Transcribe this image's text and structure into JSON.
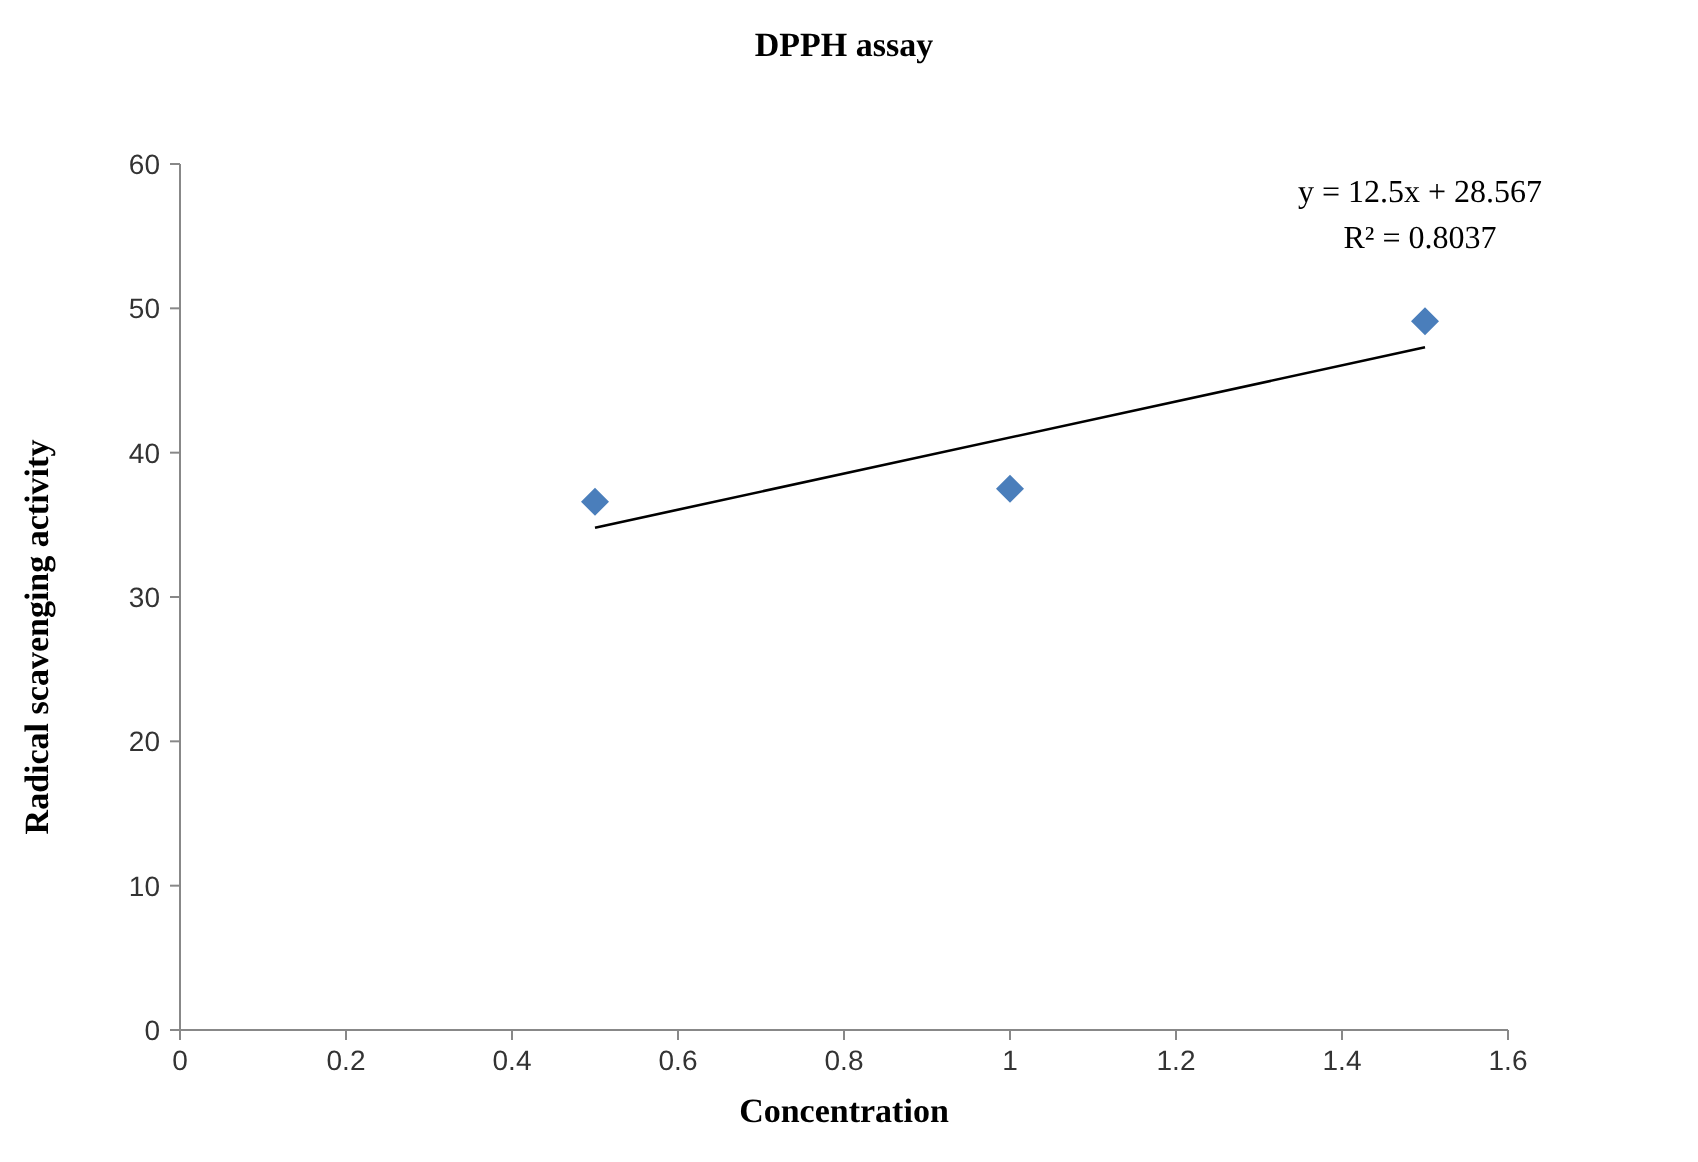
{
  "chart_data": {
    "type": "scatter",
    "title": "DPPH assay",
    "xlabel": "Concentration",
    "ylabel": "Radical scavenging activity",
    "x": [
      0.5,
      1,
      1.5
    ],
    "series": [
      {
        "color": "#4a7ebb",
        "values": [
          36.6,
          37.5,
          49.1
        ],
        "marker": "diamond"
      },
      {
        "type": "line",
        "color": "#000000",
        "x": [
          0.5,
          1.5
        ],
        "values": [
          34.8,
          47.3
        ],
        "marker": "none",
        "line_style": "solid"
      }
    ],
    "xlim": [
      0,
      1.6
    ],
    "xticks": [
      0,
      0.2,
      0.4,
      0.6,
      0.8,
      1,
      1.2,
      1.4,
      1.6
    ],
    "ylim": [
      0,
      60
    ],
    "yticks": [
      0,
      10,
      20,
      30,
      40,
      50,
      60
    ],
    "grid": false,
    "annotations": [
      "y = 12.5x + 28.567",
      "R² = 0.8037"
    ]
  }
}
